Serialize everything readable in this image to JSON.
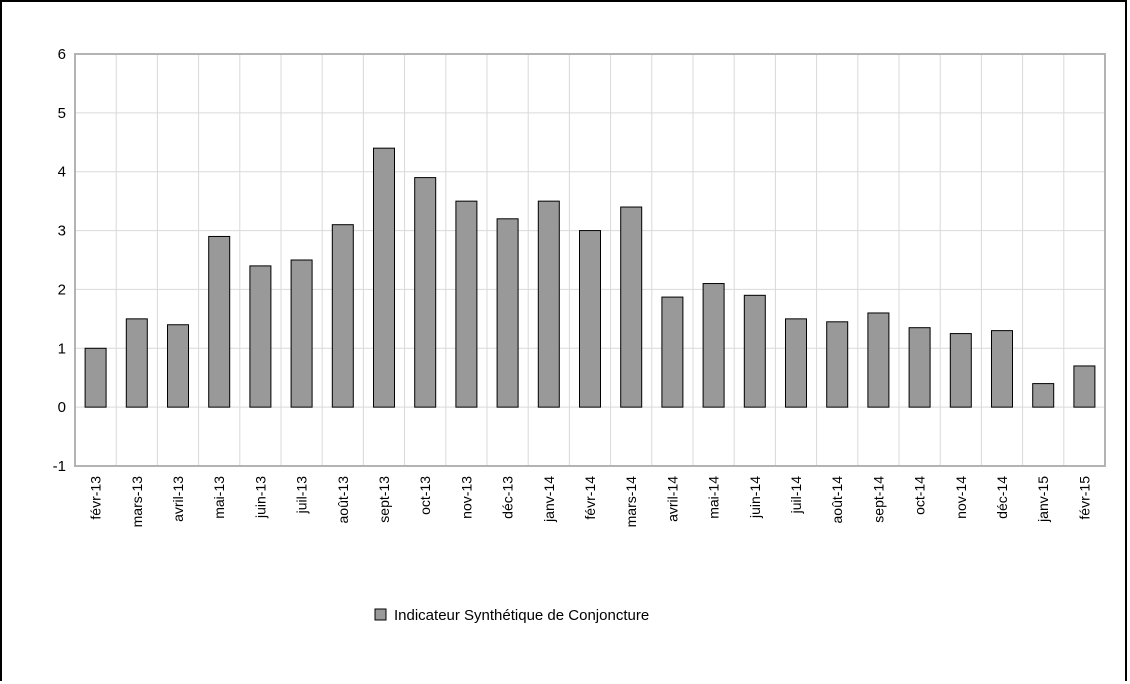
{
  "chart_data": {
    "type": "bar",
    "categories": [
      "févr-13",
      "mars-13",
      "avril-13",
      "mai-13",
      "juin-13",
      "juil-13",
      "août-13",
      "sept-13",
      "oct-13",
      "nov-13",
      "déc-13",
      "janv-14",
      "févr-14",
      "mars-14",
      "avril-14",
      "mai-14",
      "juin-14",
      "juil-14",
      "août-14",
      "sept-14",
      "oct-14",
      "nov-14",
      "déc-14",
      "janv-15",
      "févr-15"
    ],
    "series": [
      {
        "name": "Indicateur Synthétique de Conjoncture",
        "values": [
          1.0,
          1.5,
          1.4,
          2.9,
          2.4,
          2.5,
          3.1,
          4.4,
          3.9,
          3.5,
          3.2,
          3.5,
          3.0,
          3.4,
          1.87,
          2.1,
          1.9,
          1.5,
          1.45,
          1.6,
          1.35,
          1.25,
          1.3,
          0.4,
          0.7
        ],
        "color": "#999999"
      }
    ],
    "yticks": [
      "-1",
      "0",
      "1",
      "2",
      "3",
      "4",
      "5",
      "6"
    ],
    "ylim": [
      -1,
      6
    ],
    "grid": true,
    "legend": "bottom-center"
  }
}
